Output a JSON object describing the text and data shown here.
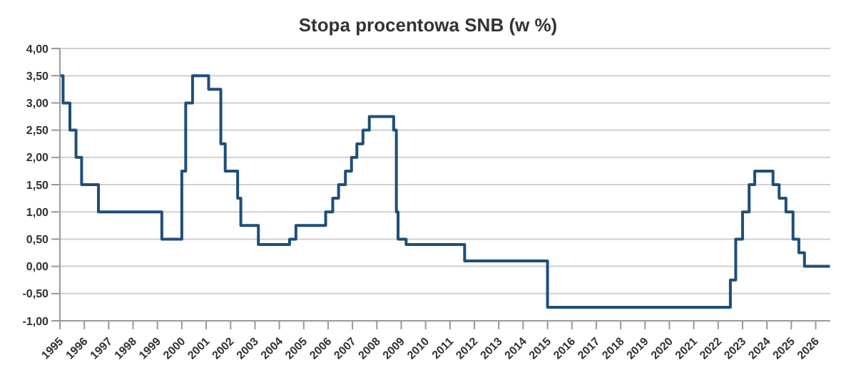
{
  "chart_data": {
    "type": "step",
    "title": "Stopa procentowa SNB (w %)",
    "x": [
      1995.0,
      1995.13,
      1995.41,
      1995.66,
      1995.89,
      1996.58,
      1999.18,
      1999.93,
      2000.0,
      2000.16,
      2000.44,
      2001.1,
      2001.6,
      2001.78,
      2002.29,
      2002.42,
      2003.14,
      2004.42,
      2004.68,
      2005.9,
      2006.19,
      2006.43,
      2006.71,
      2006.96,
      2007.18,
      2007.43,
      2007.69,
      2008.69,
      2008.8,
      2008.87,
      2008.92,
      2009.2,
      2011.6,
      2015.0,
      2022.5,
      2022.72,
      2023.0,
      2023.27,
      2023.5,
      2024.25,
      2024.5,
      2024.78,
      2025.07,
      2025.31,
      2025.54,
      2026.58
    ],
    "values": [
      3.5,
      3.0,
      2.5,
      2.0,
      1.5,
      1.0,
      0.5,
      0.5,
      1.75,
      3.0,
      3.5,
      3.25,
      2.25,
      1.75,
      1.25,
      0.75,
      0.4,
      0.5,
      0.75,
      1.0,
      1.25,
      1.5,
      1.75,
      2.0,
      2.25,
      2.5,
      2.75,
      2.5,
      1.0,
      0.5,
      0.5,
      0.4,
      0.1,
      -0.75,
      -0.25,
      0.5,
      1.0,
      1.5,
      1.75,
      1.5,
      1.25,
      1.0,
      0.5,
      0.25,
      0.0,
      0.0
    ],
    "color": "#1f4e79",
    "xlim": [
      1995,
      2026.6
    ],
    "xticks": [
      1995,
      1996,
      1997,
      1998,
      1999,
      2000,
      2001,
      2002,
      2003,
      2004,
      2005,
      2006,
      2007,
      2008,
      2009,
      2010,
      2011,
      2012,
      2013,
      2014,
      2015,
      2016,
      2017,
      2018,
      2019,
      2020,
      2021,
      2022,
      2023,
      2024,
      2025,
      2026
    ],
    "ylim": [
      -1,
      4
    ],
    "yticks": [
      {
        "value": -1,
        "label": "-1,00"
      },
      {
        "value": -0.5,
        "label": "-0,50"
      },
      {
        "value": 0,
        "label": "0,00"
      },
      {
        "value": 0.5,
        "label": "0,50"
      },
      {
        "value": 1,
        "label": "1,00"
      },
      {
        "value": 1.5,
        "label": "1,50"
      },
      {
        "value": 2,
        "label": "2,00"
      },
      {
        "value": 2.5,
        "label": "2,50"
      },
      {
        "value": 3,
        "label": "3,00"
      },
      {
        "value": 3.5,
        "label": "3,50"
      },
      {
        "value": 4,
        "label": "4,00"
      }
    ],
    "grid": "y"
  }
}
